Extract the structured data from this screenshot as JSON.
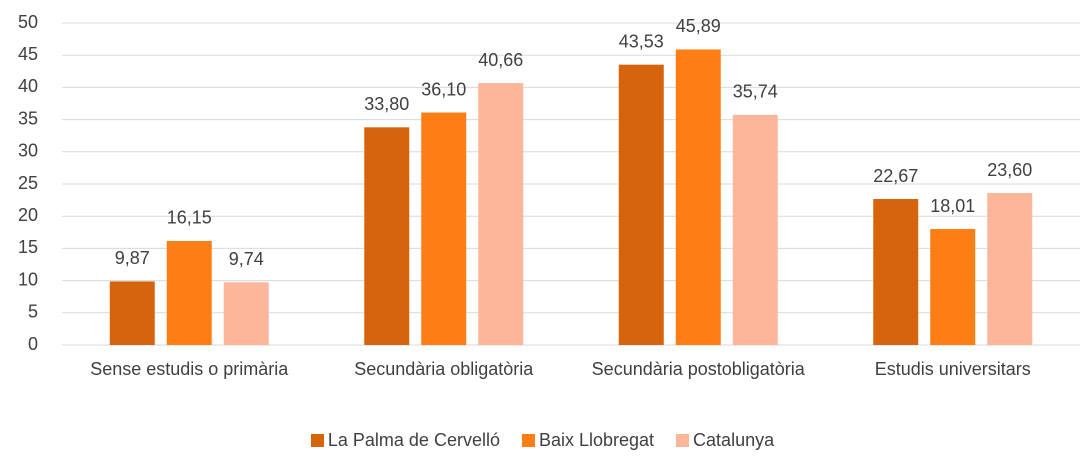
{
  "chart_data": {
    "type": "bar",
    "categories": [
      "Sense estudis o primària",
      "Secundària obligatòria",
      "Secundària postobligatòria",
      "Estudis universitars"
    ],
    "series": [
      {
        "name": "La Palma de Cervelló",
        "color": "#d5640c",
        "values": [
          9.87,
          33.8,
          43.53,
          22.67
        ],
        "value_labels": [
          "9,87",
          "33,80",
          "43,53",
          "22,67"
        ]
      },
      {
        "name": "Baix Llobregat",
        "color": "#fd7e14",
        "values": [
          16.15,
          36.1,
          45.89,
          18.01
        ],
        "value_labels": [
          "16,15",
          "36,10",
          "45,89",
          "18,01"
        ]
      },
      {
        "name": "Catalunya",
        "color": "#fcb79b",
        "values": [
          9.74,
          40.66,
          35.74,
          23.6
        ],
        "value_labels": [
          "9,74",
          "40,66",
          "35,74",
          "23,60"
        ]
      }
    ],
    "ylim": [
      0,
      50
    ],
    "yticks": [
      0,
      5,
      10,
      15,
      20,
      25,
      30,
      35,
      40,
      45,
      50
    ],
    "grid": true,
    "legend": "bottom"
  }
}
